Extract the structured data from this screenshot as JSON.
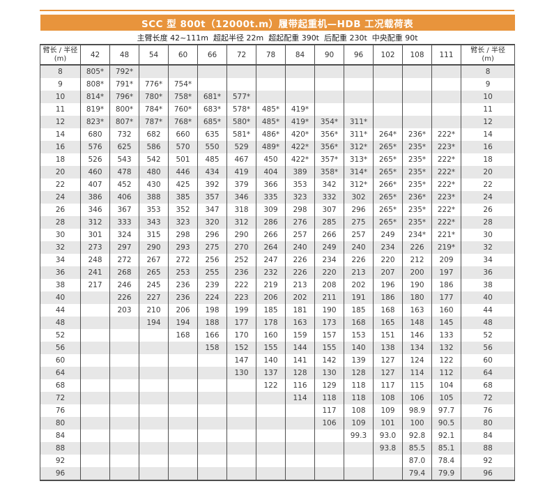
{
  "colors": {
    "accent_orange": "#E8943C",
    "row_stripe_gray": "#E7E7E7",
    "grid_border": "#4D4D4D",
    "title_text": "#FFFFFF",
    "body_text": "#3A3A3A"
  },
  "chart_data": {
    "type": "table",
    "title": "SCC 型 800t（12000t.m）履带起重机—HDB 工况载荷表",
    "subtitle": "主臂长度 42~111m  超起半径 22m  超起配重 390t  后配重 230t  中央配重 90t",
    "corner_header": "臂长 / 半径",
    "corner_unit": "(m)",
    "boom_lengths": [
      "42",
      "48",
      "54",
      "60",
      "66",
      "72",
      "78",
      "84",
      "90",
      "96",
      "102",
      "108",
      "111"
    ],
    "rows": [
      {
        "radius": "8",
        "values": [
          "805*",
          "792*",
          "",
          "",
          "",
          "",
          "",
          "",
          "",
          "",
          "",
          "",
          ""
        ]
      },
      {
        "radius": "9",
        "values": [
          "808*",
          "791*",
          "776*",
          "754*",
          "",
          "",
          "",
          "",
          "",
          "",
          "",
          "",
          ""
        ]
      },
      {
        "radius": "10",
        "values": [
          "814*",
          "796*",
          "780*",
          "758*",
          "681*",
          "577*",
          "",
          "",
          "",
          "",
          "",
          "",
          ""
        ]
      },
      {
        "radius": "11",
        "values": [
          "819*",
          "800*",
          "784*",
          "760*",
          "683*",
          "578*",
          "485*",
          "419*",
          "",
          "",
          "",
          "",
          ""
        ]
      },
      {
        "radius": "12",
        "values": [
          "823*",
          "807*",
          "787*",
          "768*",
          "685*",
          "580*",
          "485*",
          "419*",
          "354*",
          "311*",
          "",
          "",
          ""
        ]
      },
      {
        "radius": "14",
        "values": [
          "680",
          "732",
          "682",
          "660",
          "635",
          "581*",
          "486*",
          "420*",
          "356*",
          "311*",
          "264*",
          "236*",
          "222*"
        ]
      },
      {
        "radius": "16",
        "values": [
          "576",
          "625",
          "586",
          "570",
          "550",
          "529",
          "489*",
          "422*",
          "356*",
          "312*",
          "265*",
          "235*",
          "223*"
        ]
      },
      {
        "radius": "18",
        "values": [
          "526",
          "543",
          "542",
          "501",
          "485",
          "467",
          "450",
          "422*",
          "357*",
          "313*",
          "265*",
          "235*",
          "222*"
        ]
      },
      {
        "radius": "20",
        "values": [
          "460",
          "478",
          "480",
          "446",
          "434",
          "419",
          "404",
          "389",
          "358*",
          "314*",
          "265*",
          "235*",
          "222*"
        ]
      },
      {
        "radius": "22",
        "values": [
          "407",
          "452",
          "430",
          "425",
          "392",
          "379",
          "366",
          "353",
          "342",
          "312*",
          "266*",
          "235*",
          "222*"
        ]
      },
      {
        "radius": "24",
        "values": [
          "386",
          "406",
          "388",
          "385",
          "357",
          "346",
          "335",
          "323",
          "332",
          "302",
          "265*",
          "236*",
          "223*"
        ]
      },
      {
        "radius": "26",
        "values": [
          "346",
          "367",
          "353",
          "352",
          "347",
          "318",
          "309",
          "298",
          "307",
          "296",
          "265*",
          "235*",
          "222*"
        ]
      },
      {
        "radius": "28",
        "values": [
          "312",
          "333",
          "343",
          "323",
          "320",
          "312",
          "286",
          "276",
          "285",
          "275",
          "265*",
          "235*",
          "222*"
        ]
      },
      {
        "radius": "30",
        "values": [
          "301",
          "324",
          "315",
          "298",
          "296",
          "290",
          "266",
          "257",
          "266",
          "257",
          "249",
          "234*",
          "221*"
        ]
      },
      {
        "radius": "32",
        "values": [
          "273",
          "297",
          "290",
          "293",
          "275",
          "270",
          "264",
          "240",
          "249",
          "240",
          "234",
          "226",
          "219*"
        ]
      },
      {
        "radius": "34",
        "values": [
          "248",
          "272",
          "267",
          "272",
          "256",
          "252",
          "247",
          "226",
          "234",
          "226",
          "220",
          "212",
          "209"
        ]
      },
      {
        "radius": "36",
        "values": [
          "241",
          "268",
          "265",
          "253",
          "255",
          "236",
          "232",
          "226",
          "220",
          "213",
          "207",
          "200",
          "197"
        ]
      },
      {
        "radius": "38",
        "values": [
          "217",
          "246",
          "245",
          "236",
          "239",
          "222",
          "219",
          "213",
          "208",
          "202",
          "196",
          "190",
          "186"
        ]
      },
      {
        "radius": "40",
        "values": [
          "",
          "226",
          "227",
          "236",
          "224",
          "223",
          "206",
          "202",
          "211",
          "191",
          "186",
          "180",
          "177"
        ]
      },
      {
        "radius": "44",
        "values": [
          "",
          "203",
          "210",
          "206",
          "198",
          "199",
          "185",
          "181",
          "190",
          "185",
          "168",
          "163",
          "160"
        ]
      },
      {
        "radius": "48",
        "values": [
          "",
          "",
          "194",
          "194",
          "188",
          "177",
          "178",
          "163",
          "173",
          "168",
          "165",
          "148",
          "145"
        ]
      },
      {
        "radius": "52",
        "values": [
          "",
          "",
          "",
          "168",
          "166",
          "170",
          "160",
          "159",
          "157",
          "153",
          "151",
          "146",
          "133"
        ]
      },
      {
        "radius": "56",
        "values": [
          "",
          "",
          "",
          "",
          "158",
          "152",
          "155",
          "144",
          "155",
          "140",
          "138",
          "134",
          "132"
        ]
      },
      {
        "radius": "60",
        "values": [
          "",
          "",
          "",
          "",
          "",
          "147",
          "140",
          "141",
          "142",
          "139",
          "127",
          "124",
          "122"
        ]
      },
      {
        "radius": "64",
        "values": [
          "",
          "",
          "",
          "",
          "",
          "130",
          "137",
          "128",
          "130",
          "128",
          "127",
          "114",
          "112"
        ]
      },
      {
        "radius": "68",
        "values": [
          "",
          "",
          "",
          "",
          "",
          "",
          "122",
          "116",
          "129",
          "118",
          "117",
          "115",
          "104"
        ]
      },
      {
        "radius": "72",
        "values": [
          "",
          "",
          "",
          "",
          "",
          "",
          "",
          "114",
          "118",
          "118",
          "108",
          "106",
          "105"
        ]
      },
      {
        "radius": "76",
        "values": [
          "",
          "",
          "",
          "",
          "",
          "",
          "",
          "",
          "117",
          "108",
          "109",
          "98.9",
          "97.7"
        ]
      },
      {
        "radius": "80",
        "values": [
          "",
          "",
          "",
          "",
          "",
          "",
          "",
          "",
          "106",
          "109",
          "101",
          "100",
          "90.5"
        ]
      },
      {
        "radius": "84",
        "values": [
          "",
          "",
          "",
          "",
          "",
          "",
          "",
          "",
          "",
          "99.3",
          "93.0",
          "92.8",
          "92.1"
        ]
      },
      {
        "radius": "88",
        "values": [
          "",
          "",
          "",
          "",
          "",
          "",
          "",
          "",
          "",
          "",
          "93.8",
          "85.5",
          "85.1"
        ]
      },
      {
        "radius": "92",
        "values": [
          "",
          "",
          "",
          "",
          "",
          "",
          "",
          "",
          "",
          "",
          "",
          "87.0",
          "78.4"
        ]
      },
      {
        "radius": "96",
        "values": [
          "",
          "",
          "",
          "",
          "",
          "",
          "",
          "",
          "",
          "",
          "",
          "79.4",
          "79.9"
        ]
      }
    ]
  }
}
